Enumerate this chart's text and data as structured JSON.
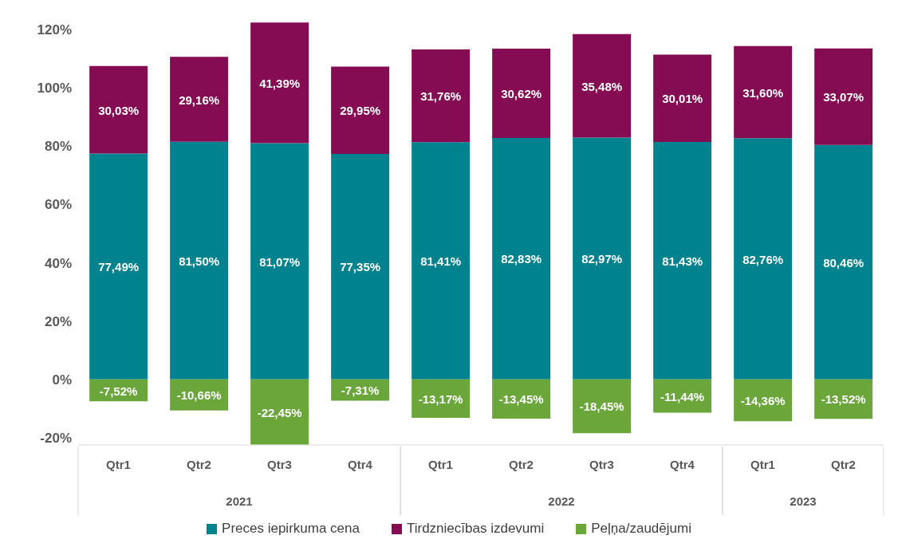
{
  "chart_data": {
    "type": "bar",
    "stacked": true,
    "categories": [
      "Qtr1",
      "Qtr2",
      "Qtr3",
      "Qtr4",
      "Qtr1",
      "Qtr2",
      "Qtr3",
      "Qtr4",
      "Qtr1",
      "Qtr2"
    ],
    "annotations": [
      "2021",
      "2022",
      "2023"
    ],
    "series": [
      {
        "name": "Preces iepirkuma cena",
        "color": "#00838f",
        "values": [
          77.49,
          81.5,
          81.07,
          77.35,
          81.41,
          82.83,
          82.97,
          81.43,
          82.76,
          80.46
        ],
        "value_labels": [
          "77,49%",
          "81,50%",
          "81,07%",
          "77,35%",
          "81,41%",
          "82,83%",
          "82,97%",
          "81,43%",
          "82,76%",
          "80,46%"
        ]
      },
      {
        "name": "Tirdzniecības izdevumi",
        "color": "#850c52",
        "values": [
          30.03,
          29.16,
          41.39,
          29.95,
          31.76,
          30.62,
          35.48,
          30.01,
          31.6,
          33.07
        ],
        "value_labels": [
          "30,03%",
          "29,16%",
          "41,39%",
          "29,95%",
          "31,76%",
          "30,62%",
          "35,48%",
          "30,01%",
          "31,60%",
          "33,07%"
        ]
      },
      {
        "name": "Peļņa/zaudējumi",
        "color": "#6aa639",
        "values": [
          -7.52,
          -10.66,
          -22.45,
          -7.31,
          -13.17,
          -13.45,
          -18.45,
          -11.44,
          -14.36,
          -13.52
        ],
        "value_labels": [
          "-7,52%",
          "-10,66%",
          "-22,45%",
          "-7,31%",
          "-13,17%",
          "-13,45%",
          "-18,45%",
          "-11,44%",
          "-14,36%",
          "-13,52%"
        ]
      }
    ],
    "ylim": [
      -22.5,
      122.5
    ],
    "yticks": [
      {
        "value": -20,
        "label": "-20%"
      },
      {
        "value": 0,
        "label": "0%"
      },
      {
        "value": 20,
        "label": "20%"
      },
      {
        "value": 40,
        "label": "40%"
      },
      {
        "value": 60,
        "label": "60%"
      },
      {
        "value": 80,
        "label": "80%"
      },
      {
        "value": 100,
        "label": "100%"
      },
      {
        "value": 120,
        "label": "120%"
      }
    ],
    "grid": false,
    "legend": "bottom"
  }
}
